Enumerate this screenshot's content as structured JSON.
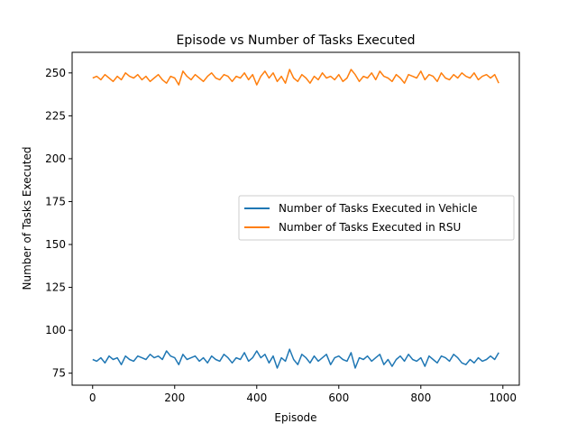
{
  "chart_data": {
    "type": "line",
    "title": "Episode vs Number of Tasks Executed",
    "xlabel": "Episode",
    "ylabel": "Number of Tasks Executed",
    "xlim": [
      -50,
      1040
    ],
    "ylim": [
      68,
      262
    ],
    "xticks": [
      0,
      200,
      400,
      600,
      800,
      1000
    ],
    "yticks": [
      75,
      100,
      125,
      150,
      175,
      200,
      225,
      250
    ],
    "grid": false,
    "legend_position": "center-right",
    "series": [
      {
        "name": "Number of Tasks Executed in Vehicle",
        "color": "#1f77b4",
        "x": [
          0,
          10,
          20,
          30,
          40,
          50,
          60,
          70,
          80,
          90,
          100,
          110,
          120,
          130,
          140,
          150,
          160,
          170,
          180,
          190,
          200,
          210,
          220,
          230,
          240,
          250,
          260,
          270,
          280,
          290,
          300,
          310,
          320,
          330,
          340,
          350,
          360,
          370,
          380,
          390,
          400,
          410,
          420,
          430,
          440,
          450,
          460,
          470,
          480,
          490,
          500,
          510,
          520,
          530,
          540,
          550,
          560,
          570,
          580,
          590,
          600,
          610,
          620,
          630,
          640,
          650,
          660,
          670,
          680,
          690,
          700,
          710,
          720,
          730,
          740,
          750,
          760,
          770,
          780,
          790,
          800,
          810,
          820,
          830,
          840,
          850,
          860,
          870,
          880,
          890,
          900,
          910,
          920,
          930,
          940,
          950,
          960,
          970,
          980,
          990
        ],
        "y": [
          83,
          82,
          84,
          81,
          85,
          83,
          84,
          80,
          85,
          83,
          82,
          85,
          84,
          83,
          86,
          84,
          85,
          83,
          88,
          85,
          84,
          80,
          86,
          83,
          84,
          85,
          82,
          84,
          81,
          85,
          83,
          82,
          86,
          84,
          81,
          84,
          83,
          87,
          82,
          84,
          88,
          84,
          86,
          81,
          85,
          78,
          84,
          82,
          89,
          83,
          80,
          86,
          84,
          81,
          85,
          82,
          84,
          86,
          80,
          84,
          85,
          83,
          82,
          87,
          78,
          84,
          83,
          85,
          82,
          84,
          86,
          80,
          83,
          79,
          83,
          85,
          82,
          86,
          83,
          82,
          84,
          79,
          85,
          83,
          81,
          85,
          84,
          82,
          86,
          84,
          81,
          80,
          83,
          81,
          84,
          82,
          83,
          85,
          83,
          87
        ]
      },
      {
        "name": "Number of Tasks Executed in RSU",
        "color": "#ff7f0e",
        "x": [
          0,
          10,
          20,
          30,
          40,
          50,
          60,
          70,
          80,
          90,
          100,
          110,
          120,
          130,
          140,
          150,
          160,
          170,
          180,
          190,
          200,
          210,
          220,
          230,
          240,
          250,
          260,
          270,
          280,
          290,
          300,
          310,
          320,
          330,
          340,
          350,
          360,
          370,
          380,
          390,
          400,
          410,
          420,
          430,
          440,
          450,
          460,
          470,
          480,
          490,
          500,
          510,
          520,
          530,
          540,
          550,
          560,
          570,
          580,
          590,
          600,
          610,
          620,
          630,
          640,
          650,
          660,
          670,
          680,
          690,
          700,
          710,
          720,
          730,
          740,
          750,
          760,
          770,
          780,
          790,
          800,
          810,
          820,
          830,
          840,
          850,
          860,
          870,
          880,
          890,
          900,
          910,
          920,
          930,
          940,
          950,
          960,
          970,
          980,
          990
        ],
        "y": [
          247,
          248,
          246,
          249,
          247,
          245,
          248,
          246,
          250,
          248,
          247,
          249,
          246,
          248,
          245,
          247,
          249,
          246,
          244,
          248,
          247,
          243,
          251,
          248,
          246,
          249,
          247,
          245,
          248,
          250,
          247,
          246,
          249,
          248,
          245,
          248,
          247,
          250,
          246,
          249,
          243,
          248,
          251,
          247,
          250,
          245,
          248,
          244,
          252,
          247,
          245,
          249,
          247,
          244,
          248,
          246,
          250,
          247,
          248,
          246,
          249,
          245,
          247,
          252,
          249,
          245,
          248,
          247,
          250,
          246,
          251,
          248,
          247,
          245,
          249,
          247,
          244,
          249,
          248,
          247,
          251,
          246,
          249,
          248,
          245,
          250,
          247,
          246,
          249,
          247,
          250,
          248,
          247,
          250,
          246,
          248,
          249,
          247,
          249,
          244
        ]
      }
    ]
  }
}
